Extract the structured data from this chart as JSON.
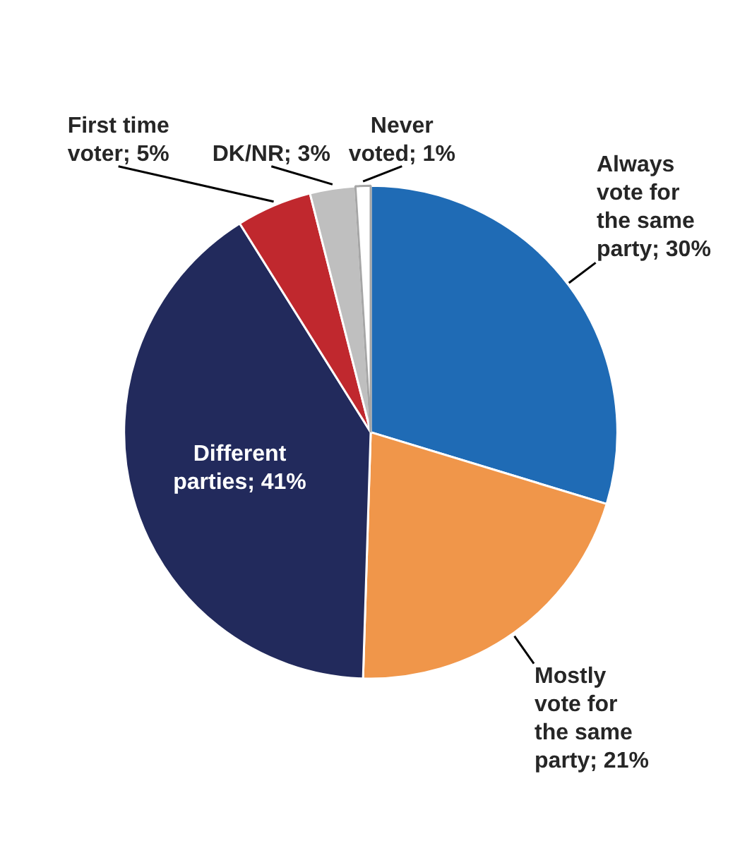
{
  "chart_data": {
    "type": "pie",
    "categories": [
      "Always vote for the same party",
      "Mostly vote for the same party",
      "Different parties",
      "First time voter",
      "DK/NR",
      "Never voted"
    ],
    "values": [
      30,
      21,
      41,
      5,
      3,
      1
    ],
    "colors": [
      "#1f6bb5",
      "#f0964a",
      "#222a5c",
      "#c0282e",
      "#bfbfbf",
      "#ffffff"
    ],
    "value_labels": [
      "30%",
      "21%",
      "41%",
      "5%",
      "3%",
      "1%"
    ],
    "legend": false
  }
}
